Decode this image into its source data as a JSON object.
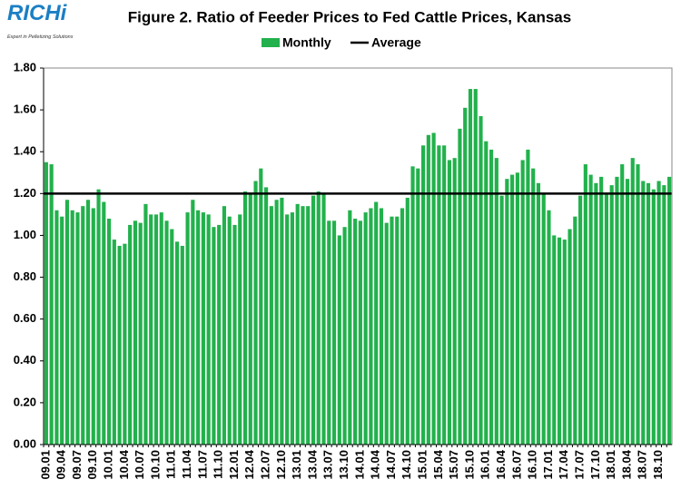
{
  "logo": {
    "name": "RICHi",
    "tagline": "Expert in Pelletizing Solutions"
  },
  "chart_data": {
    "type": "bar",
    "title": "Figure  2. Ratio of Feeder Prices to Fed Cattle Prices, Kansas",
    "categories": [
      "09.01",
      null,
      null,
      "09.04",
      null,
      null,
      "09.07",
      null,
      null,
      "09.10",
      null,
      null,
      "10.01",
      null,
      null,
      "10.04",
      null,
      null,
      "10.07",
      null,
      null,
      "10.10",
      null,
      null,
      "11.01",
      null,
      null,
      "11.04",
      null,
      null,
      "11.07",
      null,
      null,
      "11.10",
      null,
      null,
      "12.01",
      null,
      null,
      "12.04",
      null,
      null,
      "12.07",
      null,
      null,
      "12.10",
      null,
      null,
      "13.01",
      null,
      null,
      "13.04",
      null,
      null,
      "13.07",
      null,
      null,
      "13.10",
      null,
      null,
      "14.01",
      null,
      null,
      "14.04",
      null,
      null,
      "14.07",
      null,
      null,
      "14.10",
      null,
      null,
      "15.01",
      null,
      null,
      "15.04",
      null,
      null,
      "15.07",
      null,
      null,
      "15.10",
      null,
      null,
      "16.01",
      null,
      null,
      "16.04",
      null,
      null,
      "16.07",
      null,
      null,
      "16.10",
      null,
      null,
      "17.01",
      null,
      null,
      "17.04",
      null,
      null,
      "17.07",
      null,
      null,
      "17.10",
      null,
      null,
      "18.01",
      null,
      null,
      "18.04",
      null,
      null,
      "18.07",
      null,
      null,
      "18.10",
      null,
      null
    ],
    "series": [
      {
        "name": "Monthly",
        "color": "#22b14c",
        "values": [
          1.35,
          1.34,
          1.12,
          1.09,
          1.17,
          1.12,
          1.11,
          1.14,
          1.17,
          1.13,
          1.22,
          1.16,
          1.08,
          0.98,
          0.95,
          0.96,
          1.05,
          1.07,
          1.06,
          1.15,
          1.1,
          1.1,
          1.11,
          1.07,
          1.03,
          0.97,
          0.95,
          1.11,
          1.17,
          1.12,
          1.11,
          1.1,
          1.04,
          1.05,
          1.14,
          1.09,
          1.05,
          1.1,
          1.21,
          1.2,
          1.26,
          1.32,
          1.23,
          1.14,
          1.17,
          1.18,
          1.1,
          1.11,
          1.15,
          1.14,
          1.14,
          1.19,
          1.21,
          1.2,
          1.07,
          1.07,
          1.0,
          1.04,
          1.12,
          1.08,
          1.07,
          1.11,
          1.13,
          1.16,
          1.13,
          1.06,
          1.09,
          1.09,
          1.13,
          1.18,
          1.33,
          1.32,
          1.43,
          1.48,
          1.49,
          1.43,
          1.43,
          1.36,
          1.37,
          1.51,
          1.61,
          1.7,
          1.7,
          1.57,
          1.45,
          1.41,
          1.37,
          1.19,
          1.27,
          1.29,
          1.3,
          1.36,
          1.41,
          1.32,
          1.25,
          1.2,
          1.12,
          1.0,
          0.99,
          0.98,
          1.03,
          1.09,
          1.19,
          1.34,
          1.29,
          1.25,
          1.28,
          1.2,
          1.24,
          1.28,
          1.34,
          1.27,
          1.37,
          1.34,
          1.26,
          1.25,
          1.22,
          1.26,
          1.24,
          1.28
        ]
      },
      {
        "name": "Average",
        "color": "#000000",
        "type": "line",
        "value": 1.2
      }
    ],
    "ylim": [
      0,
      1.8
    ],
    "yticks": [
      {
        "value": 0,
        "label": "0.00"
      },
      {
        "value": 0.2,
        "label": "0.20"
      },
      {
        "value": 0.4,
        "label": "0.40"
      },
      {
        "value": 0.6,
        "label": "0.60"
      },
      {
        "value": 0.8,
        "label": "0.80"
      },
      {
        "value": 1,
        "label": "1.00"
      },
      {
        "value": 1.2,
        "label": "1.20"
      },
      {
        "value": 1.4,
        "label": "1.40"
      },
      {
        "value": 1.6,
        "label": "1.60"
      },
      {
        "value": 1.8,
        "label": "1.80"
      }
    ],
    "grid": false
  }
}
